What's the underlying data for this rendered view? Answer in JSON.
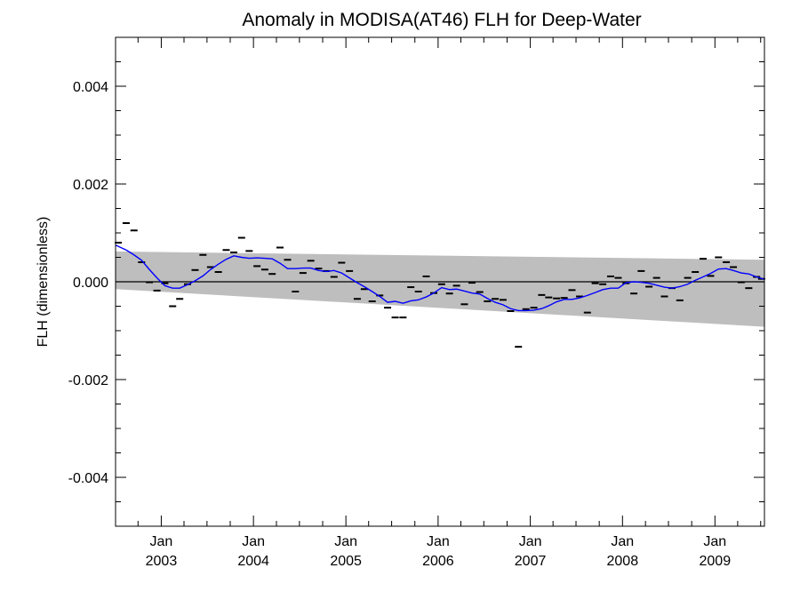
{
  "chart_data": {
    "type": "line",
    "title": "Anomaly in MODISA(AT46) FLH for Deep-Water",
    "xlabel": "",
    "ylabel": "FLH (dimensionless)",
    "xlim": [
      "2002-07-04",
      "2009-07-16"
    ],
    "ylim": [
      -0.005,
      0.005
    ],
    "grid": false,
    "y_ticks": [
      {
        "value": 0.004,
        "label": "0.004"
      },
      {
        "value": 0.002,
        "label": "0.002"
      },
      {
        "value": 0.0,
        "label": "0.000"
      },
      {
        "value": -0.002,
        "label": "-0.002"
      },
      {
        "value": -0.004,
        "label": "-0.004"
      }
    ],
    "x_ticks": [
      {
        "date": "2003-01-01",
        "month": "Jan",
        "year": "2003"
      },
      {
        "date": "2004-01-01",
        "month": "Jan",
        "year": "2004"
      },
      {
        "date": "2005-01-01",
        "month": "Jan",
        "year": "2005"
      },
      {
        "date": "2006-01-01",
        "month": "Jan",
        "year": "2006"
      },
      {
        "date": "2007-01-01",
        "month": "Jan",
        "year": "2007"
      },
      {
        "date": "2008-01-01",
        "month": "Jan",
        "year": "2008"
      },
      {
        "date": "2009-01-01",
        "month": "Jan",
        "year": "2009"
      }
    ],
    "zero_line": 0.0,
    "band": {
      "color": "#bebebe",
      "start": {
        "date": "2002-07-04",
        "upper": 0.00062,
        "lower": -0.00015
      },
      "end": {
        "date": "2009-07-16",
        "upper": 0.00045,
        "lower": -0.00092
      }
    },
    "monthly_anomaly": {
      "color": "#000000",
      "dates": [
        "2002-07-15",
        "2002-08-15",
        "2002-09-15",
        "2002-10-15",
        "2002-11-15",
        "2002-12-15",
        "2003-01-15",
        "2003-02-15",
        "2003-03-15",
        "2003-04-15",
        "2003-05-15",
        "2003-06-15",
        "2003-07-15",
        "2003-08-15",
        "2003-09-15",
        "2003-10-15",
        "2003-11-15",
        "2003-12-15",
        "2004-01-15",
        "2004-02-15",
        "2004-03-15",
        "2004-04-15",
        "2004-05-15",
        "2004-06-15",
        "2004-07-15",
        "2004-08-15",
        "2004-09-15",
        "2004-10-15",
        "2004-11-15",
        "2004-12-15",
        "2005-01-15",
        "2005-02-15",
        "2005-03-15",
        "2005-04-15",
        "2005-05-15",
        "2005-06-15",
        "2005-07-15",
        "2005-08-15",
        "2005-09-15",
        "2005-10-15",
        "2005-11-15",
        "2005-12-15",
        "2006-01-15",
        "2006-02-15",
        "2006-03-15",
        "2006-04-15",
        "2006-05-15",
        "2006-06-15",
        "2006-07-15",
        "2006-08-15",
        "2006-09-15",
        "2006-10-15",
        "2006-11-15",
        "2006-12-15",
        "2007-01-15",
        "2007-02-15",
        "2007-03-15",
        "2007-04-15",
        "2007-05-15",
        "2007-06-15",
        "2007-07-15",
        "2007-08-15",
        "2007-09-15",
        "2007-10-15",
        "2007-11-15",
        "2007-12-15",
        "2008-01-15",
        "2008-02-15",
        "2008-03-15",
        "2008-04-15",
        "2008-05-15",
        "2008-06-15",
        "2008-07-15",
        "2008-08-15",
        "2008-09-15",
        "2008-10-15",
        "2008-11-15",
        "2008-12-15",
        "2009-01-15",
        "2009-02-15",
        "2009-03-15",
        "2009-04-15",
        "2009-05-15",
        "2009-06-15",
        "2009-07-05"
      ],
      "values": [
        0.0008,
        0.0012,
        0.00105,
        0.0004,
        -1e-05,
        -0.00018,
        -3e-05,
        -0.0005,
        -0.00035,
        -5e-05,
        0.00024,
        0.00055,
        0.0003,
        0.0002,
        0.00065,
        0.0006,
        0.0009,
        0.00063,
        0.00032,
        0.00025,
        0.00016,
        0.0007,
        0.00045,
        -0.0002,
        0.00018,
        0.00043,
        0.00027,
        0.00022,
        0.0001,
        0.00039,
        0.00022,
        -0.00035,
        -0.00015,
        -0.0004,
        -0.00028,
        -0.00053,
        -0.00073,
        -0.00073,
        -0.00011,
        -0.0002,
        0.00011,
        -0.00023,
        -5e-05,
        -0.00024,
        -8e-05,
        -0.00046,
        -2e-05,
        -0.00021,
        -0.0004,
        -0.00035,
        -0.00037,
        -0.0006,
        -0.00133,
        -0.00056,
        -0.00053,
        -0.00027,
        -0.00032,
        -0.00034,
        -0.00033,
        -0.00017,
        -0.0003,
        -0.00063,
        -3e-05,
        -5e-05,
        0.00011,
        8e-05,
        -3e-05,
        -0.00024,
        0.00022,
        -0.0001,
        8e-05,
        -0.0003,
        -0.00013,
        -0.00038,
        8e-05,
        0.0002,
        0.00047,
        0.00012,
        0.0005,
        0.0004,
        0.0003,
        -1e-05,
        -0.00013,
        0.0001,
        6e-05
      ]
    },
    "running_mean": {
      "color": "#0000ff",
      "dates": [
        "2002-07-04",
        "2002-08-15",
        "2002-09-15",
        "2002-10-15",
        "2002-11-15",
        "2002-12-15",
        "2003-01-15",
        "2003-02-15",
        "2003-03-15",
        "2003-04-15",
        "2003-05-15",
        "2003-06-15",
        "2003-07-15",
        "2003-08-15",
        "2003-09-15",
        "2003-10-15",
        "2003-11-15",
        "2003-12-15",
        "2004-01-15",
        "2004-02-15",
        "2004-03-15",
        "2004-04-15",
        "2004-05-15",
        "2004-06-15",
        "2004-07-15",
        "2004-08-15",
        "2004-09-15",
        "2004-10-15",
        "2004-11-15",
        "2004-12-15",
        "2005-01-15",
        "2005-02-15",
        "2005-03-15",
        "2005-04-15",
        "2005-05-15",
        "2005-06-15",
        "2005-07-15",
        "2005-08-15",
        "2005-09-15",
        "2005-10-15",
        "2005-11-15",
        "2005-12-15",
        "2006-01-15",
        "2006-02-15",
        "2006-03-15",
        "2006-04-15",
        "2006-05-15",
        "2006-06-15",
        "2006-07-15",
        "2006-08-15",
        "2006-09-15",
        "2006-10-15",
        "2006-11-15",
        "2006-12-15",
        "2007-01-15",
        "2007-02-15",
        "2007-03-15",
        "2007-04-15",
        "2007-05-15",
        "2007-06-15",
        "2007-07-15",
        "2007-08-15",
        "2007-09-15",
        "2007-10-15",
        "2007-11-15",
        "2007-12-15",
        "2008-01-15",
        "2008-02-15",
        "2008-03-15",
        "2008-04-15",
        "2008-05-15",
        "2008-06-15",
        "2008-07-15",
        "2008-08-15",
        "2008-09-15",
        "2008-10-15",
        "2008-11-15",
        "2008-12-15",
        "2009-01-15",
        "2009-02-15",
        "2009-03-15",
        "2009-04-15",
        "2009-05-15",
        "2009-06-15",
        "2009-07-16"
      ],
      "values": [
        0.00075,
        0.00065,
        0.00055,
        0.00044,
        0.00025,
        8e-05,
        -8e-05,
        -0.00013,
        -0.00013,
        -6e-05,
        2e-05,
        0.00012,
        0.00025,
        0.00036,
        0.00046,
        0.00053,
        0.0005,
        0.00048,
        0.00049,
        0.00048,
        0.00047,
        0.00038,
        0.00027,
        0.00027,
        0.00028,
        0.00028,
        0.00023,
        0.00021,
        0.00023,
        0.00018,
        8e-05,
        -2e-05,
        -0.0001,
        -0.0002,
        -0.0003,
        -0.00042,
        -0.0004,
        -0.00044,
        -0.00039,
        -0.00037,
        -0.00031,
        -0.00023,
        -0.00012,
        -0.00016,
        -0.00015,
        -0.00019,
        -0.00023,
        -0.00025,
        -0.00034,
        -0.00042,
        -0.00047,
        -0.00055,
        -0.00059,
        -0.00059,
        -0.00058,
        -0.00055,
        -0.00049,
        -0.00041,
        -0.00036,
        -0.00036,
        -0.00033,
        -0.00028,
        -0.00022,
        -0.00016,
        -0.00013,
        -0.00013,
        -2e-05,
        0.0,
        -1e-05,
        -3e-05,
        -7e-05,
        -0.00011,
        -0.00013,
        -0.0001,
        -5e-05,
        3e-05,
        0.0001,
        0.00017,
        0.00026,
        0.00027,
        0.00023,
        0.00018,
        0.00016,
        0.0001,
        5e-05
      ]
    }
  }
}
